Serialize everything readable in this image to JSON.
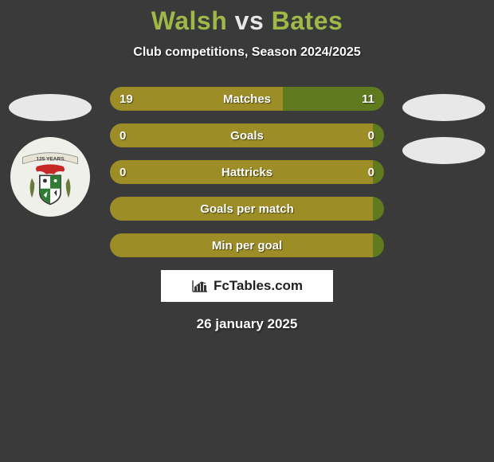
{
  "background_color": "#3a3a3a",
  "title": {
    "player1": "Walsh",
    "vs": "vs",
    "player2": "Bates",
    "player1_color": "#a0b848",
    "player2_color": "#a0b848",
    "vs_color": "#e8e8e8",
    "fontsize": 32
  },
  "subtitle": {
    "text": "Club competitions, Season 2024/2025",
    "fontsize": 16,
    "color": "#ffffff"
  },
  "colors": {
    "player1_fill": "#9c8d27",
    "player2_fill": "#5f7a1f",
    "oval_fill": "#e8e8e8",
    "text": "#ffffff"
  },
  "side_crest": {
    "background": "#f0f0ea",
    "banner_text": "125 YEARS",
    "dragon_color": "#c62828",
    "shield_border": "#333333",
    "shield_q1": "#ffffff",
    "shield_q2": "#2e7d32",
    "shield_q3": "#2e7d32",
    "shield_q4": "#ffffff"
  },
  "rows": [
    {
      "label": "Matches",
      "left": "19",
      "right": "11",
      "left_pct": 63,
      "right_pct": 37
    },
    {
      "label": "Goals",
      "left": "0",
      "right": "0",
      "left_pct": 96,
      "right_pct": 4
    },
    {
      "label": "Hattricks",
      "left": "0",
      "right": "0",
      "left_pct": 96,
      "right_pct": 4
    },
    {
      "label": "Goals per match",
      "left": "",
      "right": "",
      "left_pct": 96,
      "right_pct": 4
    },
    {
      "label": "Min per goal",
      "left": "",
      "right": "",
      "left_pct": 96,
      "right_pct": 4
    }
  ],
  "row_style": {
    "height": 30,
    "gap": 16,
    "radius": 16,
    "fontsize": 15,
    "fontweight": 800
  },
  "logo": {
    "text": "FcTables.com",
    "background": "#ffffff",
    "text_color": "#222222",
    "bar_colors": [
      "#333333",
      "#333333",
      "#333333",
      "#333333"
    ]
  },
  "date": {
    "text": "26 january 2025",
    "fontsize": 17,
    "color": "#ffffff"
  }
}
